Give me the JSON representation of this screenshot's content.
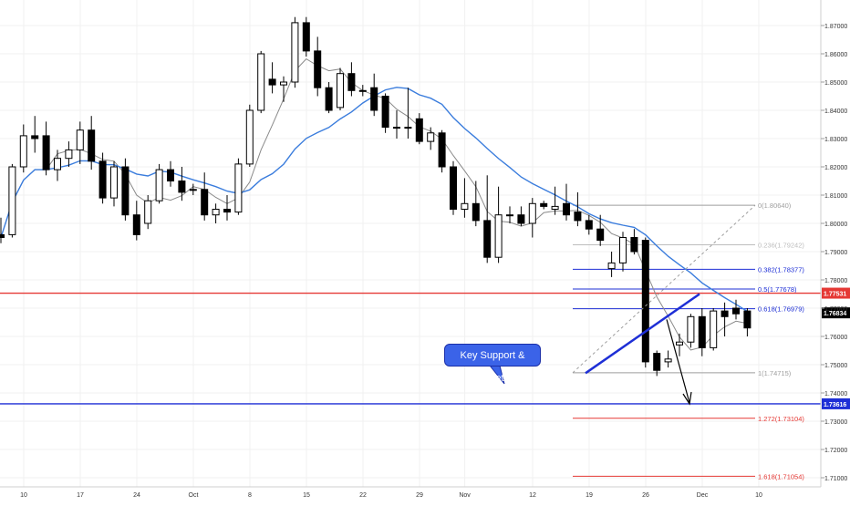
{
  "chart_data": {
    "type": "candlestick",
    "title": "",
    "xlabel": "",
    "ylabel": "",
    "ylim": [
      1.705,
      1.875
    ],
    "grid": true,
    "y_ticks": [
      "1.87000",
      "1.86000",
      "1.85000",
      "1.84000",
      "1.83000",
      "1.82000",
      "1.81000",
      "1.80000",
      "1.79000",
      "1.78000",
      "1.77000",
      "1.76000",
      "1.75000",
      "1.74000",
      "1.73000",
      "1.72000",
      "1.71000"
    ],
    "x_ticks": [
      {
        "label": "10",
        "bar": 0
      },
      {
        "label": "17",
        "bar": 5
      },
      {
        "label": "24",
        "bar": 10
      },
      {
        "label": "Oct",
        "bar": 15
      },
      {
        "label": "8",
        "bar": 20
      },
      {
        "label": "15",
        "bar": 25
      },
      {
        "label": "22",
        "bar": 30
      },
      {
        "label": "29",
        "bar": 35
      },
      {
        "label": "Nov",
        "bar": 39
      },
      {
        "label": "12",
        "bar": 45
      },
      {
        "label": "19",
        "bar": 50
      },
      {
        "label": "26",
        "bar": 55
      },
      {
        "label": "Dec",
        "bar": 60
      },
      {
        "label": "10",
        "bar": 65
      }
    ],
    "candles": [
      {
        "o": 1.796,
        "h": 1.802,
        "l": 1.793,
        "c": 1.795
      },
      {
        "o": 1.796,
        "h": 1.821,
        "l": 1.795,
        "c": 1.82
      },
      {
        "o": 1.82,
        "h": 1.835,
        "l": 1.818,
        "c": 1.831
      },
      {
        "o": 1.831,
        "h": 1.838,
        "l": 1.825,
        "c": 1.83
      },
      {
        "o": 1.831,
        "h": 1.836,
        "l": 1.817,
        "c": 1.819
      },
      {
        "o": 1.819,
        "h": 1.826,
        "l": 1.815,
        "c": 1.823
      },
      {
        "o": 1.823,
        "h": 1.829,
        "l": 1.82,
        "c": 1.826
      },
      {
        "o": 1.826,
        "h": 1.836,
        "l": 1.821,
        "c": 1.833
      },
      {
        "o": 1.833,
        "h": 1.838,
        "l": 1.819,
        "c": 1.822
      },
      {
        "o": 1.822,
        "h": 1.825,
        "l": 1.807,
        "c": 1.809
      },
      {
        "o": 1.809,
        "h": 1.822,
        "l": 1.806,
        "c": 1.82
      },
      {
        "o": 1.82,
        "h": 1.823,
        "l": 1.801,
        "c": 1.803
      },
      {
        "o": 1.803,
        "h": 1.808,
        "l": 1.794,
        "c": 1.796
      },
      {
        "o": 1.8,
        "h": 1.81,
        "l": 1.798,
        "c": 1.808
      },
      {
        "o": 1.808,
        "h": 1.821,
        "l": 1.807,
        "c": 1.819
      },
      {
        "o": 1.819,
        "h": 1.822,
        "l": 1.813,
        "c": 1.815
      },
      {
        "o": 1.815,
        "h": 1.82,
        "l": 1.808,
        "c": 1.811
      },
      {
        "o": 1.812,
        "h": 1.814,
        "l": 1.81,
        "c": 1.812
      },
      {
        "o": 1.812,
        "h": 1.818,
        "l": 1.801,
        "c": 1.803
      },
      {
        "o": 1.803,
        "h": 1.807,
        "l": 1.8,
        "c": 1.805
      },
      {
        "o": 1.805,
        "h": 1.81,
        "l": 1.801,
        "c": 1.804
      },
      {
        "o": 1.804,
        "h": 1.823,
        "l": 1.803,
        "c": 1.821
      },
      {
        "o": 1.821,
        "h": 1.842,
        "l": 1.82,
        "c": 1.84
      },
      {
        "o": 1.84,
        "h": 1.861,
        "l": 1.839,
        "c": 1.86
      },
      {
        "o": 1.851,
        "h": 1.857,
        "l": 1.846,
        "c": 1.849
      },
      {
        "o": 1.849,
        "h": 1.852,
        "l": 1.843,
        "c": 1.85
      },
      {
        "o": 1.85,
        "h": 1.873,
        "l": 1.848,
        "c": 1.871
      },
      {
        "o": 1.871,
        "h": 1.873,
        "l": 1.859,
        "c": 1.861
      },
      {
        "o": 1.861,
        "h": 1.866,
        "l": 1.845,
        "c": 1.848
      },
      {
        "o": 1.848,
        "h": 1.85,
        "l": 1.839,
        "c": 1.84
      },
      {
        "o": 1.841,
        "h": 1.855,
        "l": 1.84,
        "c": 1.853
      },
      {
        "o": 1.853,
        "h": 1.857,
        "l": 1.845,
        "c": 1.847
      },
      {
        "o": 1.847,
        "h": 1.849,
        "l": 1.845,
        "c": 1.847
      },
      {
        "o": 1.848,
        "h": 1.853,
        "l": 1.838,
        "c": 1.84
      },
      {
        "o": 1.845,
        "h": 1.846,
        "l": 1.832,
        "c": 1.834
      },
      {
        "o": 1.834,
        "h": 1.84,
        "l": 1.83,
        "c": 1.834
      },
      {
        "o": 1.834,
        "h": 1.848,
        "l": 1.83,
        "c": 1.834
      },
      {
        "o": 1.837,
        "h": 1.839,
        "l": 1.828,
        "c": 1.829
      },
      {
        "o": 1.829,
        "h": 1.834,
        "l": 1.826,
        "c": 1.832
      },
      {
        "o": 1.832,
        "h": 1.833,
        "l": 1.818,
        "c": 1.82
      },
      {
        "o": 1.82,
        "h": 1.822,
        "l": 1.803,
        "c": 1.805
      },
      {
        "o": 1.805,
        "h": 1.816,
        "l": 1.802,
        "c": 1.807
      },
      {
        "o": 1.807,
        "h": 1.815,
        "l": 1.799,
        "c": 1.801
      },
      {
        "o": 1.801,
        "h": 1.817,
        "l": 1.786,
        "c": 1.788
      },
      {
        "o": 1.788,
        "h": 1.813,
        "l": 1.786,
        "c": 1.803
      },
      {
        "o": 1.803,
        "h": 1.806,
        "l": 1.8,
        "c": 1.803
      },
      {
        "o": 1.803,
        "h": 1.806,
        "l": 1.799,
        "c": 1.8
      },
      {
        "o": 1.8,
        "h": 1.809,
        "l": 1.795,
        "c": 1.807
      },
      {
        "o": 1.807,
        "h": 1.808,
        "l": 1.805,
        "c": 1.806
      },
      {
        "o": 1.805,
        "h": 1.813,
        "l": 1.803,
        "c": 1.806
      },
      {
        "o": 1.807,
        "h": 1.814,
        "l": 1.801,
        "c": 1.803
      },
      {
        "o": 1.804,
        "h": 1.811,
        "l": 1.799,
        "c": 1.801
      },
      {
        "o": 1.801,
        "h": 1.803,
        "l": 1.796,
        "c": 1.798
      },
      {
        "o": 1.798,
        "h": 1.803,
        "l": 1.792,
        "c": 1.794
      },
      {
        "o": 1.784,
        "h": 1.79,
        "l": 1.781,
        "c": 1.786
      },
      {
        "o": 1.786,
        "h": 1.797,
        "l": 1.783,
        "c": 1.795
      },
      {
        "o": 1.795,
        "h": 1.798,
        "l": 1.789,
        "c": 1.79
      },
      {
        "o": 1.794,
        "h": 1.795,
        "l": 1.749,
        "c": 1.751
      },
      {
        "o": 1.754,
        "h": 1.755,
        "l": 1.746,
        "c": 1.748
      },
      {
        "o": 1.751,
        "h": 1.755,
        "l": 1.749,
        "c": 1.752
      },
      {
        "o": 1.757,
        "h": 1.761,
        "l": 1.753,
        "c": 1.758
      },
      {
        "o": 1.758,
        "h": 1.768,
        "l": 1.756,
        "c": 1.767
      },
      {
        "o": 1.767,
        "h": 1.77,
        "l": 1.753,
        "c": 1.756
      },
      {
        "o": 1.756,
        "h": 1.77,
        "l": 1.755,
        "c": 1.769
      },
      {
        "o": 1.769,
        "h": 1.772,
        "l": 1.76,
        "c": 1.767
      },
      {
        "o": 1.77,
        "h": 1.773,
        "l": 1.766,
        "c": 1.768
      },
      {
        "o": 1.769,
        "h": 1.77,
        "l": 1.76,
        "c": 1.763
      }
    ],
    "series": [],
    "horizontal_lines": [
      {
        "value": 1.77531,
        "color": "#e53935",
        "label": "1.77531"
      },
      {
        "value": 1.73616,
        "color": "#1e2fd6",
        "label": "1.73616"
      }
    ],
    "fib_levels": [
      {
        "label": "0(1.80640)",
        "value": 1.8064,
        "color": "#9e9e9e"
      },
      {
        "label": "0.236(1.79242)",
        "value": 1.79242,
        "color": "#bdbdbd"
      },
      {
        "label": "0.382(1.78377)",
        "value": 1.78377,
        "color": "#1e2fd6"
      },
      {
        "label": "0.5(1.77678)",
        "value": 1.77678,
        "color": "#1e2fd6"
      },
      {
        "label": "0.618(1.76979)",
        "value": 1.76979,
        "color": "#1e2fd6"
      },
      {
        "label": "1(1.74715)",
        "value": 1.74715,
        "color": "#9e9e9e"
      },
      {
        "label": "1.272(1.73104)",
        "value": 1.73104,
        "color": "#e53935"
      },
      {
        "label": "1.618(1.71054)",
        "value": 1.71054,
        "color": "#e53935"
      }
    ],
    "price_tag": {
      "value": 1.76834,
      "label": "1.76834"
    },
    "annotation": "Key Support & Targets",
    "colors": {
      "up": "#ffffff",
      "down": "#000000",
      "fast_ma": "#8a8a8a",
      "slow_ma": "#3b7ddd",
      "trendline": "#1e2fd6"
    }
  }
}
